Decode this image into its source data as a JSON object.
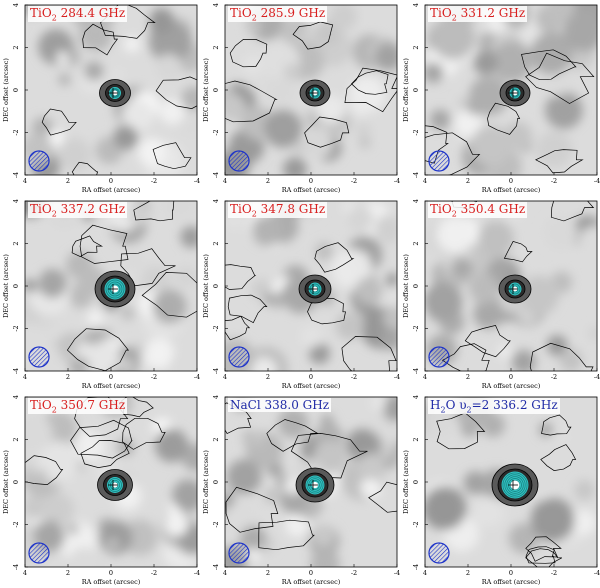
{
  "colors": {
    "tio2_label": "#d81e1e",
    "nacl_label": "#1f2aa6",
    "h2o_label": "#1f2aa6",
    "beam": "#1f35c9",
    "inner_contour": "#35c6c6",
    "outer_contour": "#000000",
    "core": "#ffffff"
  },
  "axes": {
    "ra_label": "RA offset (arcsec)",
    "dec_label": "DEC offset (arcsec)",
    "x_ticks": [
      "4",
      "2",
      "0",
      "-2",
      "-4"
    ],
    "y_ticks": [
      "-4",
      "-2",
      "0",
      "2",
      "4"
    ]
  },
  "panels": [
    {
      "id": "p1",
      "mol": "TiO",
      "sub": "2",
      "suffix": " 284.4 GHz",
      "label_color": "#d81e1e",
      "compact": 0.55,
      "rings": 1,
      "beam_icon": "hatched-circle-icon"
    },
    {
      "id": "p2",
      "mol": "TiO",
      "sub": "2",
      "suffix": " 285.9 GHz",
      "label_color": "#d81e1e",
      "compact": 0.5,
      "rings": 1,
      "beam_icon": "hatched-circle-icon"
    },
    {
      "id": "p3",
      "mol": "TiO",
      "sub": "2",
      "suffix": " 331.2 GHz",
      "label_color": "#d81e1e",
      "compact": 0.5,
      "rings": 1,
      "beam_icon": "hatched-circle-icon"
    },
    {
      "id": "p4",
      "mol": "TiO",
      "sub": "2",
      "suffix": " 337.2 GHz",
      "label_color": "#d81e1e",
      "compact": 1.0,
      "rings": 4,
      "beam_icon": "hatched-circle-icon"
    },
    {
      "id": "p5",
      "mol": "TiO",
      "sub": "2",
      "suffix": " 347.8 GHz",
      "label_color": "#d81e1e",
      "compact": 0.6,
      "rings": 2,
      "beam_icon": "hatched-circle-icon"
    },
    {
      "id": "p6",
      "mol": "TiO",
      "sub": "2",
      "suffix": " 350.4 GHz",
      "label_color": "#d81e1e",
      "compact": 0.6,
      "rings": 2,
      "beam_icon": "hatched-circle-icon"
    },
    {
      "id": "p7",
      "mol": "TiO",
      "sub": "2",
      "suffix": " 350.7 GHz",
      "label_color": "#d81e1e",
      "compact": 0.75,
      "rings": 3,
      "beam_icon": "hatched-circle-icon"
    },
    {
      "id": "p8",
      "mol": "NaCl",
      "sub": "",
      "suffix": " 338.0 GHz",
      "label_color": "#1f2aa6",
      "compact": 0.9,
      "rings": 4,
      "beam_icon": "hatched-circle-icon"
    },
    {
      "id": "p9",
      "mol": "H",
      "sub": "2",
      "suffix": "O υ",
      "sub2": "2",
      "suffix2": "=2 336.2 GHz",
      "label_color": "#1f2aa6",
      "compact": 1.3,
      "rings": 6,
      "beam_icon": "hatched-circle-icon"
    }
  ]
}
